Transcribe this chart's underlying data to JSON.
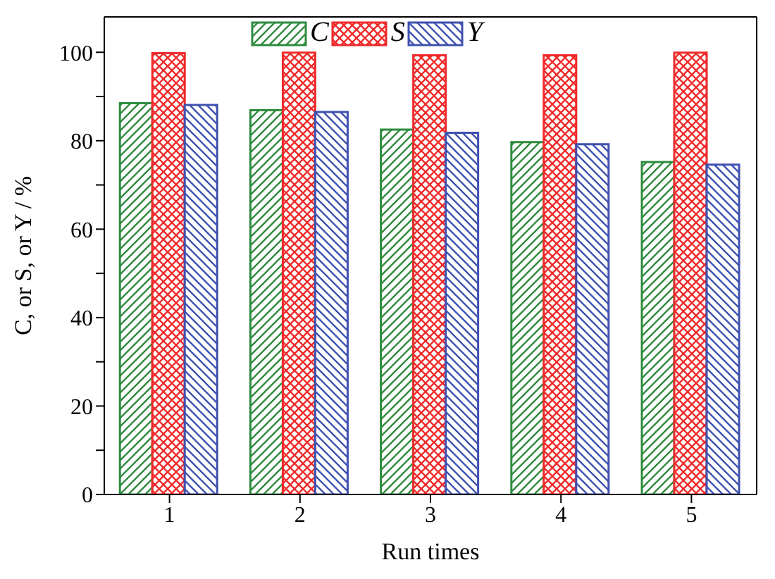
{
  "chart_data": {
    "type": "bar",
    "xlabel": "Run times",
    "ylabel": "C, or S, or Y / %",
    "categories": [
      "1",
      "2",
      "3",
      "4",
      "5"
    ],
    "series": [
      {
        "name": "C",
        "color": "#2e8b3e",
        "values": [
          88.5,
          86.9,
          82.5,
          79.7,
          75.2
        ]
      },
      {
        "name": "S",
        "color": "#f02a2a",
        "values": [
          99.8,
          99.9,
          99.3,
          99.3,
          99.9
        ]
      },
      {
        "name": "Y",
        "color": "#3f51b0",
        "values": [
          88.1,
          86.5,
          81.8,
          79.2,
          74.6
        ]
      }
    ],
    "ylim": [
      0,
      108
    ],
    "yticks": [
      0,
      {
        "value": 10,
        "label": null
      },
      20,
      {
        "value": 30,
        "label": null
      },
      40,
      {
        "value": 50,
        "label": null
      },
      60,
      {
        "value": 70,
        "label": null
      },
      80,
      {
        "value": 90,
        "label": null
      },
      100
    ],
    "legend": "top"
  }
}
